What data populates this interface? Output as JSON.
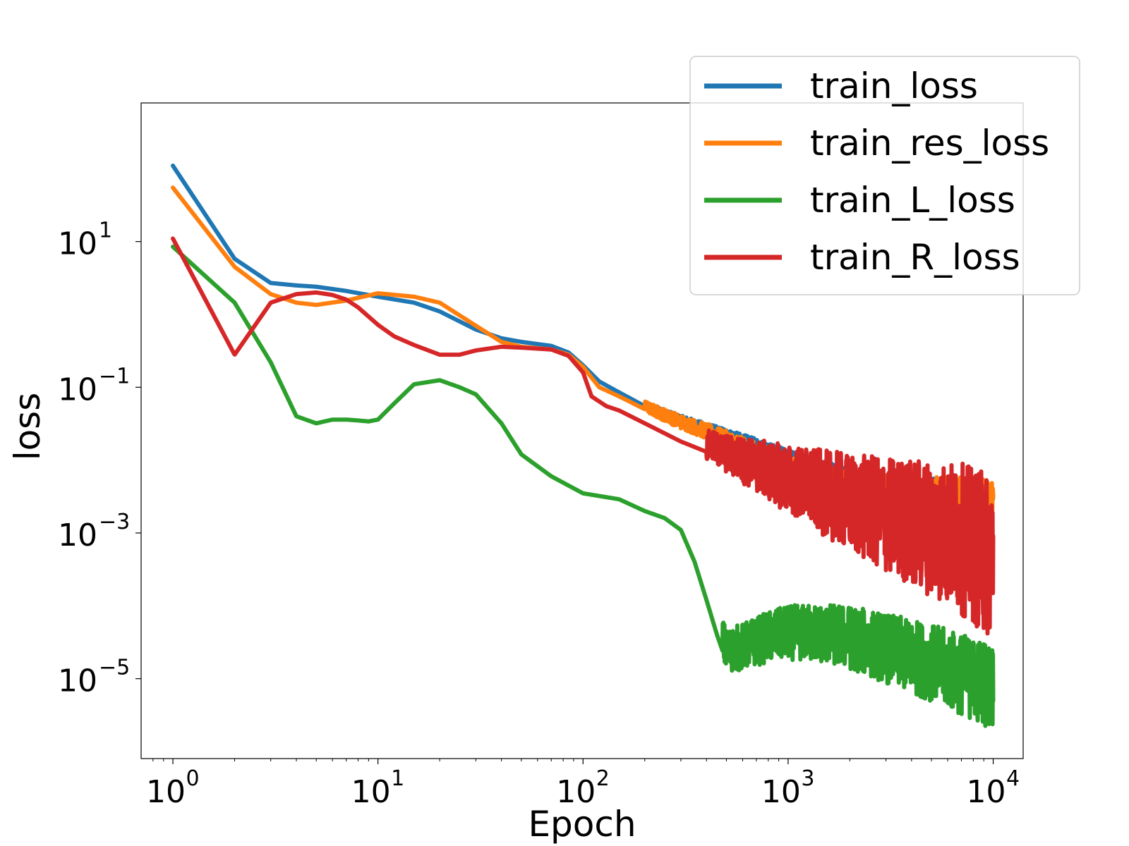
{
  "chart_data": {
    "type": "line",
    "title": "",
    "xlabel": "Epoch",
    "ylabel": "loss",
    "xscale": "log",
    "yscale": "log",
    "xlim": [
      0.7,
      14000
    ],
    "ylim": [
      8e-07,
      800
    ],
    "grid": false,
    "legend_position": "top-right",
    "x_ticks": [
      {
        "value": 1,
        "base": "10",
        "exp": "0"
      },
      {
        "value": 10,
        "base": "10",
        "exp": "1"
      },
      {
        "value": 100,
        "base": "10",
        "exp": "2"
      },
      {
        "value": 1000,
        "base": "10",
        "exp": "3"
      },
      {
        "value": 10000,
        "base": "10",
        "exp": "4"
      }
    ],
    "y_ticks": [
      {
        "value": 10,
        "base": "10",
        "exp": "1"
      },
      {
        "value": 0.1,
        "base": "10",
        "exp": "−1"
      },
      {
        "value": 0.001,
        "base": "10",
        "exp": "−3"
      },
      {
        "value": 1e-05,
        "base": "10",
        "exp": "−5"
      }
    ],
    "series": [
      {
        "name": "train_loss",
        "color": "#1f77b4",
        "x": [
          1,
          2,
          3,
          4,
          5,
          7,
          10,
          15,
          20,
          30,
          40,
          50,
          70,
          85,
          100,
          120,
          150,
          200,
          300,
          400,
          500,
          700,
          1000,
          1500,
          2000,
          3000,
          5000,
          7000,
          10000
        ],
        "y": [
          110,
          5.8,
          2.7,
          2.5,
          2.4,
          2.1,
          1.75,
          1.45,
          1.1,
          0.62,
          0.47,
          0.42,
          0.37,
          0.3,
          0.2,
          0.12,
          0.085,
          0.055,
          0.035,
          0.027,
          0.022,
          0.016,
          0.011,
          0.0075,
          0.0058,
          0.0048,
          0.0042,
          0.0038,
          0.003
        ],
        "noise_start": 200,
        "noise_low": [
          0.0028
        ],
        "noise_end_low": 0.0025
      },
      {
        "name": "train_res_loss",
        "color": "#ff7f0e",
        "x": [
          1,
          2,
          3,
          4,
          5,
          7,
          10,
          15,
          20,
          30,
          40,
          50,
          70,
          85,
          100,
          120,
          150,
          200,
          300,
          400,
          500,
          700,
          1000,
          1500,
          2000,
          3000,
          5000,
          7000,
          10000
        ],
        "y": [
          55,
          4.5,
          1.9,
          1.45,
          1.35,
          1.55,
          1.95,
          1.75,
          1.45,
          0.7,
          0.42,
          0.36,
          0.33,
          0.28,
          0.19,
          0.1,
          0.075,
          0.05,
          0.03,
          0.022,
          0.017,
          0.011,
          0.0068,
          0.0045,
          0.0038,
          0.0032,
          0.0028,
          0.0026,
          0.0022
        ],
        "noise_start": 200
      },
      {
        "name": "train_L_loss",
        "color": "#2ca02c",
        "x": [
          1,
          2,
          3,
          4,
          5,
          6,
          7,
          8,
          9,
          10,
          12,
          15,
          20,
          25,
          30,
          40,
          50,
          70,
          100,
          130,
          150,
          200,
          250,
          300,
          350,
          400,
          450,
          500,
          600,
          800,
          1000,
          1500,
          2000,
          3000,
          5000,
          7000,
          10000
        ],
        "y": [
          8.5,
          1.45,
          0.22,
          0.04,
          0.032,
          0.036,
          0.036,
          0.035,
          0.034,
          0.036,
          0.06,
          0.11,
          0.125,
          0.1,
          0.08,
          0.032,
          0.012,
          0.006,
          0.0035,
          0.0031,
          0.0029,
          0.002,
          0.0016,
          0.0011,
          0.0004,
          0.00012,
          4e-05,
          1.7e-05,
          1.9e-05,
          2.5e-05,
          2.8e-05,
          2.6e-05,
          2.2e-05,
          1.5e-05,
          9e-06,
          6e-06,
          4e-06
        ],
        "noise_start": 480
      },
      {
        "name": "train_R_loss",
        "color": "#d62728",
        "x": [
          1,
          2,
          3,
          4,
          5,
          6,
          7,
          8,
          10,
          12,
          15,
          20,
          25,
          30,
          40,
          50,
          70,
          85,
          100,
          110,
          130,
          150,
          200,
          300,
          400,
          500,
          700,
          1000,
          1500,
          2000,
          3000,
          5000,
          7000,
          10000
        ],
        "y": [
          11,
          0.28,
          1.45,
          1.9,
          2.0,
          1.85,
          1.6,
          1.25,
          0.72,
          0.5,
          0.38,
          0.28,
          0.28,
          0.32,
          0.36,
          0.35,
          0.33,
          0.27,
          0.16,
          0.075,
          0.055,
          0.048,
          0.032,
          0.018,
          0.013,
          0.009,
          0.0055,
          0.0032,
          0.0018,
          0.0012,
          0.0007,
          0.0004,
          0.00025,
          0.00012
        ],
        "noise_start": 400
      }
    ]
  }
}
